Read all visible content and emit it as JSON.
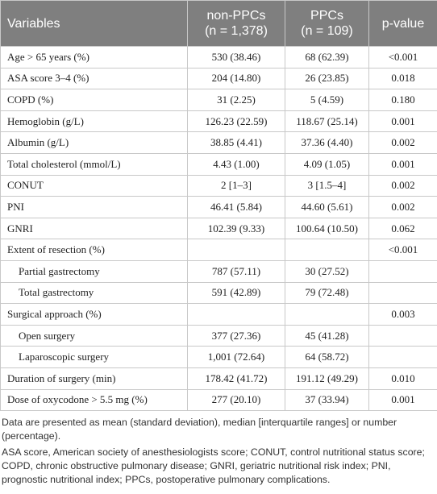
{
  "table": {
    "header": [
      [
        "Variables"
      ],
      [
        "non-PPCs",
        "(n = 1,378)"
      ],
      [
        "PPCs",
        "(n = 109)"
      ],
      [
        "p-value"
      ]
    ],
    "rows": [
      [
        "Age > 65 years (%)",
        "530 (38.46)",
        "68 (62.39)",
        "<0.001"
      ],
      [
        "ASA score 3–4 (%)",
        "204 (14.80)",
        "26 (23.85)",
        "0.018"
      ],
      [
        "COPD (%)",
        "31 (2.25)",
        "5 (4.59)",
        "0.180"
      ],
      [
        "Hemoglobin (g/L)",
        "126.23 (22.59)",
        "118.67 (25.14)",
        "0.001"
      ],
      [
        "Albumin (g/L)",
        "38.85 (4.41)",
        "37.36 (4.40)",
        "0.002"
      ],
      [
        "Total cholesterol (mmol/L)",
        "4.43 (1.00)",
        "4.09 (1.05)",
        "0.001"
      ],
      [
        "CONUT",
        "2 [1–3]",
        "3 [1.5–4]",
        "0.002"
      ],
      [
        "PNI",
        "46.41 (5.84)",
        "44.60 (5.61)",
        "0.002"
      ],
      [
        "GNRI",
        "102.39 (9.33)",
        "100.64 (10.50)",
        "0.062"
      ],
      [
        "Extent of resection (%)",
        null,
        null,
        "<0.001"
      ],
      [
        "Partial gastrectomy",
        "787 (57.11)",
        "30 (27.52)",
        null
      ],
      [
        "Total gastrectomy",
        "591 (42.89)",
        "79 (72.48)",
        null
      ],
      [
        "Surgical approach (%)",
        null,
        null,
        "0.003"
      ],
      [
        "Open surgery",
        "377 (27.36)",
        "45 (41.28)",
        null
      ],
      [
        "Laparoscopic surgery",
        "1,001 (72.64)",
        "64 (58.72)",
        null
      ],
      [
        "Duration of surgery (min)",
        "178.42 (41.72)",
        "191.12 (49.29)",
        "0.010"
      ],
      [
        "Dose of oxycodone > 5.5 mg (%)",
        "277 (20.10)",
        "37 (33.94)",
        "0.001"
      ]
    ]
  },
  "notes": [
    "Data are presented as mean (standard deviation), median [interquartile ranges] or number (percentage).",
    "ASA score, American society of anesthesiologists score; CONUT, control nutritional status score; COPD, chronic obstructive pulmonary disease; GNRI, geriatric nutritional risk index; PNI, prognostic nutritional index; PPCs, postoperative pulmonary complications."
  ]
}
